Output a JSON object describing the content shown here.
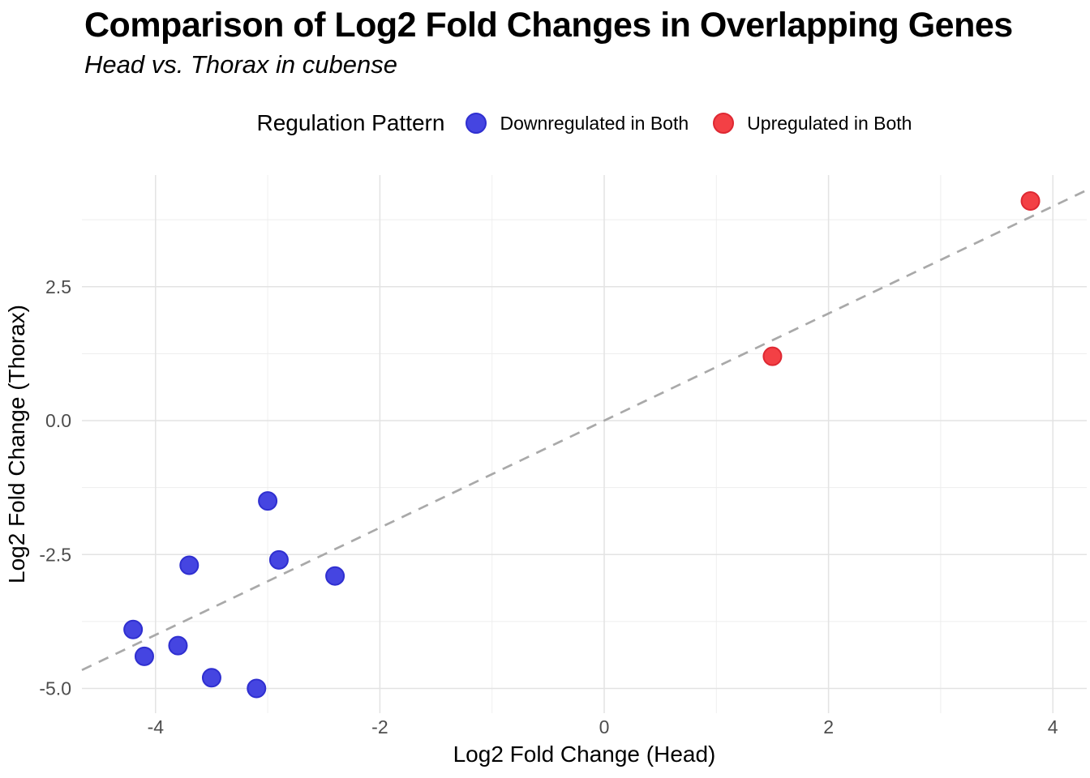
{
  "header": {
    "title": "Comparison of Log2 Fold Changes in Overlapping Genes",
    "subtitle": "Head vs. Thorax in cubense"
  },
  "legend": {
    "title": "Regulation Pattern",
    "items": [
      {
        "label": "Downregulated in Both",
        "color": "#4545E1",
        "stroke": "#2F2FD0"
      },
      {
        "label": "Upregulated in Both",
        "color": "#F34045",
        "stroke": "#DE2832"
      }
    ]
  },
  "chart_data": {
    "type": "scatter",
    "title": "Comparison of Log2 Fold Changes in Overlapping Genes",
    "subtitle": "Head vs. Thorax in cubense",
    "xlabel": "Log2 Fold Change (Head)",
    "ylabel": "Log2 Fold Change (Thorax)",
    "xlim": [
      -4.66,
      4.3
    ],
    "ylim": [
      -5.46,
      4.58
    ],
    "x_ticks": [
      -4,
      -2,
      0,
      2,
      4
    ],
    "x_tick_labels": [
      "-4",
      "-2",
      "0",
      "2",
      "4"
    ],
    "y_ticks": [
      2.5,
      0.0,
      -2.5,
      -5.0
    ],
    "y_tick_labels": [
      "2.5",
      "0.0",
      "-2.5",
      "-5.0"
    ],
    "x_minor_ticks": [
      -3,
      -1,
      1,
      3
    ],
    "y_minor_ticks": [
      3.75,
      1.25,
      -1.25,
      -3.75
    ],
    "grid": true,
    "legend_position": "top",
    "series": [
      {
        "name": "Downregulated in Both",
        "color": "#4545E1",
        "stroke": "#2F2FD0",
        "points": [
          [
            -3.0,
            -1.5
          ],
          [
            -2.9,
            -2.6
          ],
          [
            -3.7,
            -2.7
          ],
          [
            -2.4,
            -2.9
          ],
          [
            -4.2,
            -3.9
          ],
          [
            -3.8,
            -4.2
          ],
          [
            -4.1,
            -4.4
          ],
          [
            -3.5,
            -4.8
          ],
          [
            -3.1,
            -5.0
          ]
        ]
      },
      {
        "name": "Upregulated in Both",
        "color": "#F34045",
        "stroke": "#DE2832",
        "points": [
          [
            1.5,
            1.2
          ],
          [
            3.8,
            4.1
          ]
        ]
      }
    ],
    "reference_line": {
      "type": "identity",
      "slope": 1,
      "intercept": 0,
      "style": "dashed",
      "color": "#A9A9A9"
    },
    "style": {
      "grid_major_color": "#E3E3E3",
      "grid_minor_color": "#EDEDED",
      "tick_label_color": "#4D4D4D",
      "axis_title_color": "#000000",
      "background": "#FFFFFF",
      "point_radius": 11
    }
  }
}
